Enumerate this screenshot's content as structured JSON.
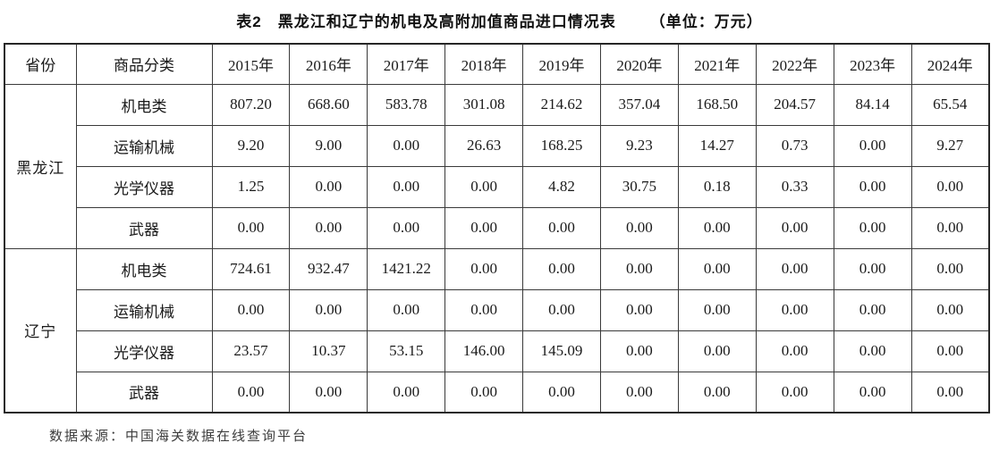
{
  "title": "表2　黑龙江和辽宁的机电及高附加值商品进口情况表",
  "unit_label": "（单位：万元）",
  "table": {
    "col_headers": [
      "省份",
      "商品分类",
      "2015年",
      "2016年",
      "2017年",
      "2018年",
      "2019年",
      "2020年",
      "2021年",
      "2022年",
      "2023年",
      "2024年"
    ],
    "sections": [
      {
        "province": "黑龙江",
        "rows": [
          {
            "category": "机电类",
            "values": [
              "807.20",
              "668.60",
              "583.78",
              "301.08",
              "214.62",
              "357.04",
              "168.50",
              "204.57",
              "84.14",
              "65.54"
            ]
          },
          {
            "category": "运输机械",
            "values": [
              "9.20",
              "9.00",
              "0.00",
              "26.63",
              "168.25",
              "9.23",
              "14.27",
              "0.73",
              "0.00",
              "9.27"
            ]
          },
          {
            "category": "光学仪器",
            "values": [
              "1.25",
              "0.00",
              "0.00",
              "0.00",
              "4.82",
              "30.75",
              "0.18",
              "0.33",
              "0.00",
              "0.00"
            ]
          },
          {
            "category": "武器",
            "values": [
              "0.00",
              "0.00",
              "0.00",
              "0.00",
              "0.00",
              "0.00",
              "0.00",
              "0.00",
              "0.00",
              "0.00"
            ]
          }
        ]
      },
      {
        "province": "辽宁",
        "rows": [
          {
            "category": "机电类",
            "values": [
              "724.61",
              "932.47",
              "1421.22",
              "0.00",
              "0.00",
              "0.00",
              "0.00",
              "0.00",
              "0.00",
              "0.00"
            ]
          },
          {
            "category": "运输机械",
            "values": [
              "0.00",
              "0.00",
              "0.00",
              "0.00",
              "0.00",
              "0.00",
              "0.00",
              "0.00",
              "0.00",
              "0.00"
            ]
          },
          {
            "category": "光学仪器",
            "values": [
              "23.57",
              "10.37",
              "53.15",
              "146.00",
              "145.09",
              "0.00",
              "0.00",
              "0.00",
              "0.00",
              "0.00"
            ]
          },
          {
            "category": "武器",
            "values": [
              "0.00",
              "0.00",
              "0.00",
              "0.00",
              "0.00",
              "0.00",
              "0.00",
              "0.00",
              "0.00",
              "0.00"
            ]
          }
        ]
      }
    ]
  },
  "footer": {
    "source": "数据来源：中国海关数据在线查询平台"
  }
}
